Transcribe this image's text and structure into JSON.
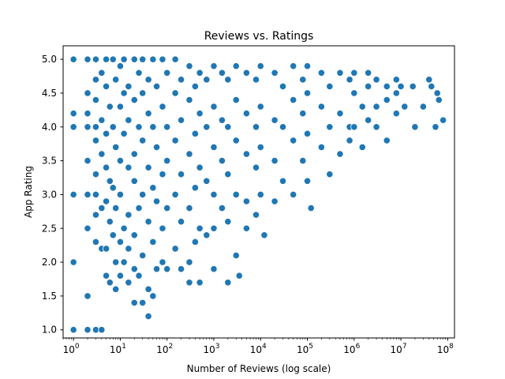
{
  "chart_data": {
    "type": "scatter",
    "title": "Reviews vs. Ratings",
    "xlabel": "Number of Reviews (log scale)",
    "ylabel": "App Rating",
    "xscale": "log",
    "xlim": [
      0.6,
      140000000
    ],
    "ylim": [
      0.88,
      5.2
    ],
    "x_ticks": [
      {
        "value": 1,
        "base": "10",
        "exp": "0"
      },
      {
        "value": 10,
        "base": "10",
        "exp": "1"
      },
      {
        "value": 100,
        "base": "10",
        "exp": "2"
      },
      {
        "value": 1000,
        "base": "10",
        "exp": "3"
      },
      {
        "value": 10000,
        "base": "10",
        "exp": "4"
      },
      {
        "value": 100000,
        "base": "10",
        "exp": "5"
      },
      {
        "value": 1000000,
        "base": "10",
        "exp": "6"
      },
      {
        "value": 10000000,
        "base": "10",
        "exp": "7"
      },
      {
        "value": 100000000,
        "base": "10",
        "exp": "8"
      }
    ],
    "y_ticks": [
      "1.0",
      "1.5",
      "2.0",
      "2.5",
      "3.0",
      "3.5",
      "4.0",
      "4.5",
      "5.0"
    ],
    "grid": false,
    "marker_color": "#1f77b4",
    "marker_edge_color": "#ffffff",
    "points": [
      {
        "x": 1,
        "y": 5.0
      },
      {
        "x": 1,
        "y": 4.2
      },
      {
        "x": 1,
        "y": 4.0
      },
      {
        "x": 1,
        "y": 3.0
      },
      {
        "x": 1,
        "y": 2.0
      },
      {
        "x": 1,
        "y": 1.0
      },
      {
        "x": 2,
        "y": 5.0
      },
      {
        "x": 2,
        "y": 4.5
      },
      {
        "x": 2,
        "y": 4.2
      },
      {
        "x": 2,
        "y": 4.0
      },
      {
        "x": 2,
        "y": 3.5
      },
      {
        "x": 2,
        "y": 3.0
      },
      {
        "x": 2,
        "y": 2.5
      },
      {
        "x": 2,
        "y": 1.5
      },
      {
        "x": 2,
        "y": 1.0
      },
      {
        "x": 3,
        "y": 5.0
      },
      {
        "x": 3,
        "y": 4.7
      },
      {
        "x": 3,
        "y": 4.4
      },
      {
        "x": 3,
        "y": 4.0
      },
      {
        "x": 3,
        "y": 3.8
      },
      {
        "x": 3,
        "y": 3.3
      },
      {
        "x": 3,
        "y": 3.0
      },
      {
        "x": 3,
        "y": 2.7
      },
      {
        "x": 3,
        "y": 2.3
      },
      {
        "x": 3,
        "y": 1.0
      },
      {
        "x": 4,
        "y": 4.8
      },
      {
        "x": 4,
        "y": 4.1
      },
      {
        "x": 4,
        "y": 3.6
      },
      {
        "x": 4,
        "y": 2.8
      },
      {
        "x": 4,
        "y": 2.2
      },
      {
        "x": 4,
        "y": 1.0
      },
      {
        "x": 5,
        "y": 5.0
      },
      {
        "x": 5,
        "y": 4.6
      },
      {
        "x": 5,
        "y": 3.9
      },
      {
        "x": 5,
        "y": 3.4
      },
      {
        "x": 5,
        "y": 2.9
      },
      {
        "x": 5,
        "y": 2.2
      },
      {
        "x": 5,
        "y": 1.8
      },
      {
        "x": 6,
        "y": 4.3
      },
      {
        "x": 6,
        "y": 3.2
      },
      {
        "x": 6,
        "y": 2.6
      },
      {
        "x": 6,
        "y": 1.7
      },
      {
        "x": 7,
        "y": 5.0
      },
      {
        "x": 7,
        "y": 4.0
      },
      {
        "x": 7,
        "y": 3.1
      },
      {
        "x": 7,
        "y": 2.4
      },
      {
        "x": 8,
        "y": 4.7
      },
      {
        "x": 8,
        "y": 3.7
      },
      {
        "x": 8,
        "y": 2.8
      },
      {
        "x": 8,
        "y": 2.0
      },
      {
        "x": 8,
        "y": 1.6
      },
      {
        "x": 10,
        "y": 4.9
      },
      {
        "x": 10,
        "y": 4.3
      },
      {
        "x": 10,
        "y": 3.5
      },
      {
        "x": 10,
        "y": 3.0
      },
      {
        "x": 10,
        "y": 2.3
      },
      {
        "x": 10,
        "y": 1.8
      },
      {
        "x": 12,
        "y": 5.0
      },
      {
        "x": 12,
        "y": 4.5
      },
      {
        "x": 12,
        "y": 3.9
      },
      {
        "x": 12,
        "y": 2.5
      },
      {
        "x": 12,
        "y": 2.0
      },
      {
        "x": 15,
        "y": 4.6
      },
      {
        "x": 15,
        "y": 4.1
      },
      {
        "x": 15,
        "y": 3.4
      },
      {
        "x": 15,
        "y": 2.7
      },
      {
        "x": 15,
        "y": 2.2
      },
      {
        "x": 15,
        "y": 1.7
      },
      {
        "x": 20,
        "y": 5.0
      },
      {
        "x": 20,
        "y": 4.4
      },
      {
        "x": 20,
        "y": 3.6
      },
      {
        "x": 20,
        "y": 3.2
      },
      {
        "x": 20,
        "y": 2.4
      },
      {
        "x": 20,
        "y": 1.9
      },
      {
        "x": 20,
        "y": 1.4
      },
      {
        "x": 25,
        "y": 4.8
      },
      {
        "x": 25,
        "y": 4.0
      },
      {
        "x": 25,
        "y": 2.8
      },
      {
        "x": 25,
        "y": 1.8
      },
      {
        "x": 30,
        "y": 5.0
      },
      {
        "x": 30,
        "y": 4.5
      },
      {
        "x": 30,
        "y": 3.8
      },
      {
        "x": 30,
        "y": 3.0
      },
      {
        "x": 30,
        "y": 2.1
      },
      {
        "x": 30,
        "y": 1.4
      },
      {
        "x": 40,
        "y": 4.7
      },
      {
        "x": 40,
        "y": 4.2
      },
      {
        "x": 40,
        "y": 3.4
      },
      {
        "x": 40,
        "y": 2.6
      },
      {
        "x": 40,
        "y": 1.6
      },
      {
        "x": 40,
        "y": 1.2
      },
      {
        "x": 50,
        "y": 5.0
      },
      {
        "x": 50,
        "y": 4.0
      },
      {
        "x": 50,
        "y": 3.1
      },
      {
        "x": 50,
        "y": 2.3
      },
      {
        "x": 50,
        "y": 1.5
      },
      {
        "x": 60,
        "y": 4.6
      },
      {
        "x": 60,
        "y": 3.7
      },
      {
        "x": 60,
        "y": 2.9
      },
      {
        "x": 60,
        "y": 1.9
      },
      {
        "x": 80,
        "y": 5.0
      },
      {
        "x": 80,
        "y": 4.3
      },
      {
        "x": 80,
        "y": 3.3
      },
      {
        "x": 80,
        "y": 2.5
      },
      {
        "x": 80,
        "y": 2.0
      },
      {
        "x": 100,
        "y": 4.8
      },
      {
        "x": 100,
        "y": 4.0
      },
      {
        "x": 100,
        "y": 3.5
      },
      {
        "x": 100,
        "y": 2.8
      },
      {
        "x": 100,
        "y": 1.9
      },
      {
        "x": 150,
        "y": 5.0
      },
      {
        "x": 150,
        "y": 4.5
      },
      {
        "x": 150,
        "y": 3.8
      },
      {
        "x": 150,
        "y": 3.0
      },
      {
        "x": 150,
        "y": 2.2
      },
      {
        "x": 200,
        "y": 4.7
      },
      {
        "x": 200,
        "y": 4.1
      },
      {
        "x": 200,
        "y": 3.3
      },
      {
        "x": 200,
        "y": 2.6
      },
      {
        "x": 200,
        "y": 1.9
      },
      {
        "x": 300,
        "y": 4.9
      },
      {
        "x": 300,
        "y": 4.4
      },
      {
        "x": 300,
        "y": 3.6
      },
      {
        "x": 300,
        "y": 2.8
      },
      {
        "x": 300,
        "y": 2.0
      },
      {
        "x": 300,
        "y": 1.7
      },
      {
        "x": 400,
        "y": 4.6
      },
      {
        "x": 400,
        "y": 3.9
      },
      {
        "x": 400,
        "y": 3.1
      },
      {
        "x": 400,
        "y": 2.3
      },
      {
        "x": 500,
        "y": 4.8
      },
      {
        "x": 500,
        "y": 4.2
      },
      {
        "x": 500,
        "y": 3.4
      },
      {
        "x": 500,
        "y": 2.5
      },
      {
        "x": 500,
        "y": 1.7
      },
      {
        "x": 700,
        "y": 4.7
      },
      {
        "x": 700,
        "y": 4.0
      },
      {
        "x": 700,
        "y": 3.2
      },
      {
        "x": 700,
        "y": 2.4
      },
      {
        "x": 1000,
        "y": 4.9
      },
      {
        "x": 1000,
        "y": 4.3
      },
      {
        "x": 1000,
        "y": 3.7
      },
      {
        "x": 1000,
        "y": 3.0
      },
      {
        "x": 1000,
        "y": 2.5
      },
      {
        "x": 1000,
        "y": 1.9
      },
      {
        "x": 1500,
        "y": 4.8
      },
      {
        "x": 1500,
        "y": 4.1
      },
      {
        "x": 1500,
        "y": 3.5
      },
      {
        "x": 1500,
        "y": 2.8
      },
      {
        "x": 2000,
        "y": 4.7
      },
      {
        "x": 2000,
        "y": 4.0
      },
      {
        "x": 2000,
        "y": 3.3
      },
      {
        "x": 2000,
        "y": 2.6
      },
      {
        "x": 2000,
        "y": 1.7
      },
      {
        "x": 3000,
        "y": 4.9
      },
      {
        "x": 3000,
        "y": 4.4
      },
      {
        "x": 3000,
        "y": 3.8
      },
      {
        "x": 3000,
        "y": 3.0
      },
      {
        "x": 3000,
        "y": 2.1
      },
      {
        "x": 3500,
        "y": 1.8
      },
      {
        "x": 5000,
        "y": 4.8
      },
      {
        "x": 5000,
        "y": 4.2
      },
      {
        "x": 5000,
        "y": 3.6
      },
      {
        "x": 5000,
        "y": 2.9
      },
      {
        "x": 5000,
        "y": 2.5
      },
      {
        "x": 8000,
        "y": 4.7
      },
      {
        "x": 8000,
        "y": 4.0
      },
      {
        "x": 8000,
        "y": 3.4
      },
      {
        "x": 8000,
        "y": 2.7
      },
      {
        "x": 10000,
        "y": 4.9
      },
      {
        "x": 10000,
        "y": 4.3
      },
      {
        "x": 10000,
        "y": 3.7
      },
      {
        "x": 10000,
        "y": 3.0
      },
      {
        "x": 12000,
        "y": 2.4
      },
      {
        "x": 20000,
        "y": 4.8
      },
      {
        "x": 20000,
        "y": 4.1
      },
      {
        "x": 20000,
        "y": 3.5
      },
      {
        "x": 20000,
        "y": 2.9
      },
      {
        "x": 30000,
        "y": 4.6
      },
      {
        "x": 30000,
        "y": 4.0
      },
      {
        "x": 30000,
        "y": 3.2
      },
      {
        "x": 50000,
        "y": 4.9
      },
      {
        "x": 50000,
        "y": 4.4
      },
      {
        "x": 50000,
        "y": 3.8
      },
      {
        "x": 50000,
        "y": 3.0
      },
      {
        "x": 80000,
        "y": 4.7
      },
      {
        "x": 80000,
        "y": 4.2
      },
      {
        "x": 80000,
        "y": 3.5
      },
      {
        "x": 100000,
        "y": 4.9
      },
      {
        "x": 100000,
        "y": 4.5
      },
      {
        "x": 100000,
        "y": 3.9
      },
      {
        "x": 100000,
        "y": 3.2
      },
      {
        "x": 120000,
        "y": 2.8
      },
      {
        "x": 200000,
        "y": 4.8
      },
      {
        "x": 200000,
        "y": 4.3
      },
      {
        "x": 200000,
        "y": 3.7
      },
      {
        "x": 300000,
        "y": 4.6
      },
      {
        "x": 300000,
        "y": 4.0
      },
      {
        "x": 300000,
        "y": 3.3
      },
      {
        "x": 500000,
        "y": 4.8
      },
      {
        "x": 500000,
        "y": 4.2
      },
      {
        "x": 500000,
        "y": 3.6
      },
      {
        "x": 800000,
        "y": 4.7
      },
      {
        "x": 800000,
        "y": 4.0
      },
      {
        "x": 800000,
        "y": 3.8
      },
      {
        "x": 1000000,
        "y": 4.8
      },
      {
        "x": 1000000,
        "y": 4.5
      },
      {
        "x": 1000000,
        "y": 4.0
      },
      {
        "x": 1500000,
        "y": 3.7
      },
      {
        "x": 1500000,
        "y": 4.3
      },
      {
        "x": 2000000,
        "y": 4.8
      },
      {
        "x": 2000000,
        "y": 4.6
      },
      {
        "x": 2000000,
        "y": 4.1
      },
      {
        "x": 3000000,
        "y": 4.7
      },
      {
        "x": 3000000,
        "y": 4.3
      },
      {
        "x": 3000000,
        "y": 4.0
      },
      {
        "x": 5000000,
        "y": 4.6
      },
      {
        "x": 5000000,
        "y": 4.4
      },
      {
        "x": 5000000,
        "y": 3.8
      },
      {
        "x": 8000000,
        "y": 4.7
      },
      {
        "x": 8000000,
        "y": 4.5
      },
      {
        "x": 8000000,
        "y": 4.2
      },
      {
        "x": 10000000,
        "y": 4.6
      },
      {
        "x": 12000000,
        "y": 4.3
      },
      {
        "x": 18000000,
        "y": 4.6
      },
      {
        "x": 20000000,
        "y": 4.0
      },
      {
        "x": 30000000,
        "y": 4.3
      },
      {
        "x": 40000000,
        "y": 4.7
      },
      {
        "x": 45000000,
        "y": 4.6
      },
      {
        "x": 55000000,
        "y": 4.0
      },
      {
        "x": 60000000,
        "y": 4.5
      },
      {
        "x": 65000000,
        "y": 4.4
      },
      {
        "x": 80000000,
        "y": 4.1
      }
    ]
  }
}
